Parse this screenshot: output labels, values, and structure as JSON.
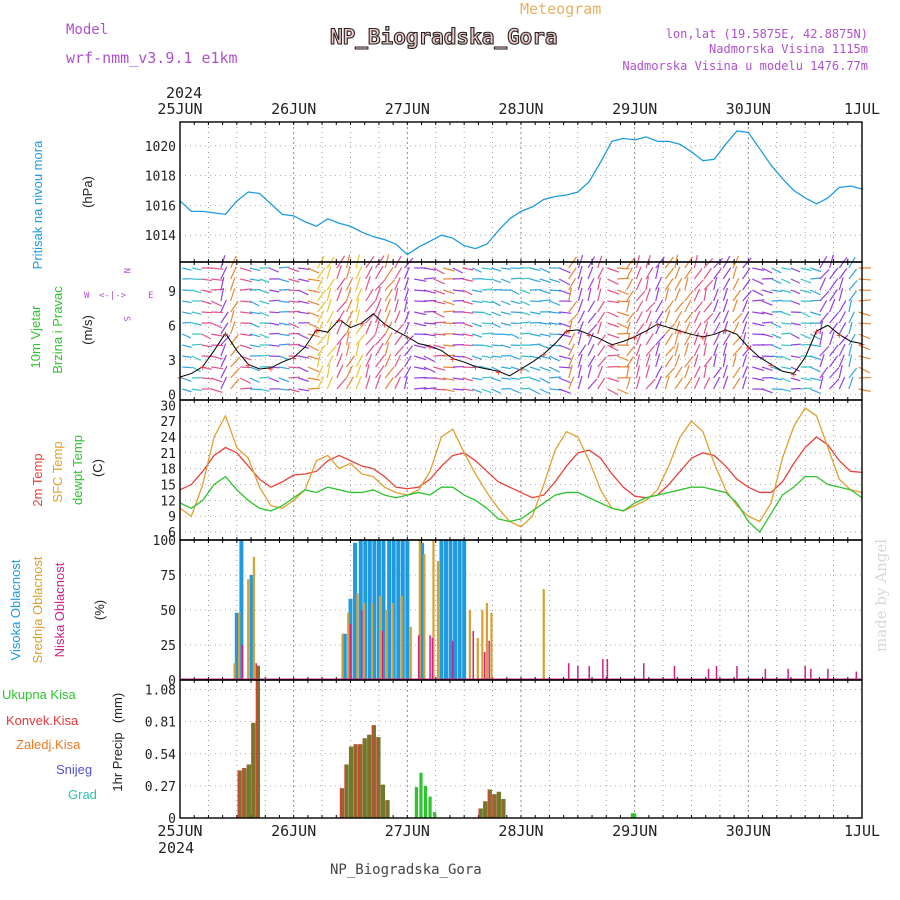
{
  "header": {
    "model_label": "Model",
    "model_name": "wrf-nmm_v3.9.1 e1km",
    "station": "NP_Biogradska_Gora",
    "meteogram": "Meteogram",
    "lonlat": "lon,lat (19.5875E, 42.8875N)",
    "altitude": "Nadmorska Visina 1115m",
    "model_altitude": "Nadmorska Visina u modelu 1476.77m",
    "year_top": "2024",
    "year_bottom": "2024",
    "footer_station": "NP_Biogradska_Gora",
    "watermark": "made by Angel"
  },
  "colors": {
    "pressure": "#1e9be0",
    "temp2m": "#e8413a",
    "sfc": "#e0a030",
    "dewpt": "#2ec42e",
    "high_cloud": "#1e9be0",
    "mid_cloud": "#d9a030",
    "low_cloud": "#d0208a",
    "total_precip": "#2ec42e",
    "conv_precip": "#e83838",
    "strat_precip": "#f07a20",
    "snow": "#5050d8",
    "graupel": "#30c0b0",
    "mix_precip": "#6b7d2a",
    "label_purple": "#b050d0",
    "label_orange": "#e8b060"
  },
  "chart_data": [
    {
      "type": "line",
      "panel": "pressure",
      "x_ticks": [
        "25JUN",
        "26JUN",
        "27JUN",
        "28JUN",
        "29JUN",
        "30JUN",
        "1JUL"
      ],
      "ylabel": "Pritisak na nivou mora",
      "unit": "(hPa)",
      "ylim": [
        1012.2,
        1021.6
      ],
      "yticks": [
        1014,
        1016,
        1018,
        1020
      ],
      "grid": true,
      "series": [
        {
          "x_days": [
            0,
            0.1,
            0.2,
            0.3,
            0.4,
            0.5,
            0.6,
            0.7,
            0.8,
            0.9,
            1,
            1.1,
            1.2,
            1.3,
            1.4,
            1.5,
            1.6,
            1.7,
            1.8,
            1.9,
            2,
            2.1,
            2.2,
            2.3,
            2.4,
            2.5,
            2.6,
            2.7,
            2.8,
            2.9,
            3,
            3.1,
            3.2,
            3.3,
            3.4,
            3.5,
            3.6,
            3.7,
            3.8,
            3.9,
            4,
            4.1,
            4.2,
            4.3,
            4.4,
            4.5,
            4.6,
            4.7,
            4.8,
            4.9,
            5,
            5.1,
            5.2,
            5.3,
            5.4,
            5.5,
            5.6,
            5.7,
            5.8,
            5.9,
            6
          ],
          "values": [
            1016.3,
            1015.6,
            1015.6,
            1015.5,
            1015.4,
            1016.3,
            1016.9,
            1016.8,
            1016.1,
            1015.4,
            1015.3,
            1014.9,
            1014.6,
            1015.1,
            1014.8,
            1014.6,
            1014.2,
            1013.9,
            1013.7,
            1013.4,
            1012.7,
            1013.2,
            1013.6,
            1014,
            1013.8,
            1013.3,
            1013.1,
            1013.4,
            1014.3,
            1015.1,
            1015.6,
            1015.9,
            1016.4,
            1016.6,
            1016.7,
            1016.9,
            1017.6,
            1018.9,
            1020.3,
            1020.5,
            1020.4,
            1020.6,
            1020.3,
            1020.3,
            1020.1,
            1019.6,
            1019,
            1019.1,
            1020.1,
            1021,
            1020.9,
            1019.8,
            1018.7,
            1017.8,
            1017,
            1016.5,
            1016.1,
            1016.5,
            1017.2,
            1017.3,
            1017.1
          ]
        }
      ]
    },
    {
      "type": "line",
      "panel": "wind",
      "ylabel": "10m Vjetar",
      "ylabel2": "Brzina i Pravac",
      "unit": "(m/s)",
      "compass": [
        "W",
        "<-|->",
        "E",
        "N",
        "S"
      ],
      "ylim": [
        -0.5,
        11.5
      ],
      "yticks": [
        0,
        3,
        6,
        9
      ],
      "grid": true,
      "series": [
        {
          "name": "wind_speed",
          "x_days": [
            0,
            0.1,
            0.2,
            0.3,
            0.4,
            0.5,
            0.6,
            0.7,
            0.8,
            0.9,
            1,
            1.1,
            1.2,
            1.3,
            1.4,
            1.5,
            1.6,
            1.7,
            1.8,
            1.9,
            2,
            2.1,
            2.2,
            2.3,
            2.4,
            2.5,
            2.6,
            2.7,
            2.8,
            2.9,
            3,
            3.1,
            3.2,
            3.3,
            3.4,
            3.5,
            3.6,
            3.7,
            3.8,
            3.9,
            4,
            4.1,
            4.2,
            4.3,
            4.4,
            4.5,
            4.6,
            4.7,
            4.8,
            4.9,
            5,
            5.1,
            5.2,
            5.3,
            5.4,
            5.5,
            5.6,
            5.7,
            5.8,
            5.9,
            6
          ],
          "values": [
            1.5,
            1.8,
            2.4,
            3.8,
            5.3,
            3.8,
            2.6,
            2.2,
            2.3,
            2.8,
            3.2,
            4.1,
            5.6,
            5.4,
            6.5,
            5.8,
            6.2,
            7.0,
            6.1,
            5.5,
            5.0,
            4.4,
            4.2,
            3.8,
            3.1,
            2.8,
            2.4,
            2.2,
            2.0,
            1.6,
            2.2,
            2.8,
            3.5,
            4.4,
            5.5,
            5.6,
            5.2,
            4.8,
            4.3,
            4.6,
            5.0,
            5.5,
            6.1,
            5.8,
            5.5,
            5.2,
            5.0,
            5.2,
            5.6,
            5.2,
            4.1,
            3.2,
            2.6,
            2.0,
            1.8,
            3.2,
            5.5,
            6.0,
            5.2,
            4.6,
            4.4
          ]
        }
      ]
    },
    {
      "type": "line",
      "panel": "temperature",
      "ylabel_lines": [
        "2m Temp",
        "SFC Temp",
        "dewpt Temp"
      ],
      "unit": "(C)",
      "ylim": [
        4.5,
        31
      ],
      "yticks": [
        6,
        9,
        12,
        15,
        18,
        21,
        24,
        27,
        30
      ],
      "grid": true,
      "series": [
        {
          "name": "2m Temp",
          "x_days": [
            0,
            0.1,
            0.2,
            0.3,
            0.4,
            0.5,
            0.6,
            0.7,
            0.8,
            0.9,
            1,
            1.1,
            1.2,
            1.3,
            1.4,
            1.5,
            1.6,
            1.7,
            1.8,
            1.9,
            2,
            2.1,
            2.2,
            2.3,
            2.4,
            2.5,
            2.6,
            2.7,
            2.8,
            2.9,
            3,
            3.1,
            3.2,
            3.3,
            3.4,
            3.5,
            3.6,
            3.7,
            3.8,
            3.9,
            4,
            4.1,
            4.2,
            4.3,
            4.4,
            4.5,
            4.6,
            4.7,
            4.8,
            4.9,
            5,
            5.1,
            5.2,
            5.3,
            5.4,
            5.5,
            5.6,
            5.7,
            5.8,
            5.9,
            6
          ],
          "values": [
            14.0,
            15.0,
            17.5,
            20.5,
            22.0,
            21.0,
            18.5,
            16.0,
            14.5,
            15.5,
            16.8,
            17.0,
            17.5,
            19.5,
            20.5,
            19.5,
            18.5,
            18.0,
            16.5,
            14.5,
            14.2,
            14.5,
            16.0,
            18.5,
            20.5,
            21.0,
            19.5,
            17.5,
            15.5,
            14.5,
            13.5,
            12.5,
            13.0,
            15.5,
            18.5,
            21.0,
            21.5,
            20.0,
            17.0,
            14.5,
            12.8,
            12.5,
            13.0,
            15.0,
            17.5,
            20.0,
            21.0,
            20.5,
            18.5,
            16.0,
            14.5,
            13.5,
            13.5,
            15.5,
            19.0,
            22.0,
            24.0,
            22.5,
            19.5,
            17.5,
            17.3
          ]
        },
        {
          "name": "SFC Temp",
          "x_days": [
            0,
            0.1,
            0.2,
            0.3,
            0.4,
            0.5,
            0.6,
            0.7,
            0.8,
            0.9,
            1,
            1.1,
            1.2,
            1.3,
            1.4,
            1.5,
            1.6,
            1.7,
            1.8,
            1.9,
            2,
            2.1,
            2.2,
            2.3,
            2.4,
            2.5,
            2.6,
            2.7,
            2.8,
            2.9,
            3,
            3.1,
            3.2,
            3.3,
            3.4,
            3.5,
            3.6,
            3.7,
            3.8,
            3.9,
            4,
            4.1,
            4.2,
            4.3,
            4.4,
            4.5,
            4.6,
            4.7,
            4.8,
            4.9,
            5,
            5.1,
            5.2,
            5.3,
            5.4,
            5.5,
            5.6,
            5.7,
            5.8,
            5.9,
            6
          ],
          "values": [
            10.5,
            9.0,
            15.0,
            24.0,
            28.0,
            22.0,
            20.0,
            14.5,
            11.0,
            10.5,
            12.0,
            14.0,
            19.5,
            20.5,
            18.0,
            19.0,
            17.0,
            16.5,
            14.5,
            13.5,
            13.0,
            14.0,
            17.5,
            24.0,
            25.5,
            21.0,
            17.0,
            13.5,
            10.5,
            8.0,
            7.0,
            9.0,
            15.0,
            21.5,
            25.0,
            24.0,
            19.5,
            14.0,
            10.5,
            10.0,
            11.0,
            12.0,
            14.0,
            18.5,
            24.0,
            27.0,
            25.0,
            19.0,
            14.0,
            11.0,
            9.0,
            8.0,
            11.5,
            20.0,
            26.0,
            29.5,
            28.0,
            22.0,
            16.0,
            14.0,
            13.5
          ]
        },
        {
          "name": "dewpt Temp",
          "x_days": [
            0,
            0.1,
            0.2,
            0.3,
            0.4,
            0.5,
            0.6,
            0.7,
            0.8,
            0.9,
            1,
            1.1,
            1.2,
            1.3,
            1.4,
            1.5,
            1.6,
            1.7,
            1.8,
            1.9,
            2,
            2.1,
            2.2,
            2.3,
            2.4,
            2.5,
            2.6,
            2.7,
            2.8,
            2.9,
            3,
            3.1,
            3.2,
            3.3,
            3.4,
            3.5,
            3.6,
            3.7,
            3.8,
            3.9,
            4,
            4.1,
            4.2,
            4.3,
            4.4,
            4.5,
            4.6,
            4.7,
            4.8,
            4.9,
            5,
            5.1,
            5.2,
            5.3,
            5.4,
            5.5,
            5.6,
            5.7,
            5.8,
            5.9,
            6
          ],
          "values": [
            11.5,
            10.5,
            12.0,
            15.0,
            16.5,
            14.0,
            12.0,
            10.5,
            10.0,
            11.0,
            12.5,
            14.0,
            13.5,
            14.5,
            14.0,
            13.5,
            13.5,
            14.0,
            13.0,
            12.5,
            13.0,
            13.5,
            13.0,
            14.5,
            14.5,
            13.0,
            12.0,
            10.5,
            8.5,
            8.0,
            8.5,
            10.0,
            11.5,
            13.0,
            13.5,
            13.5,
            12.5,
            11.5,
            10.5,
            10.0,
            11.5,
            12.5,
            13.0,
            13.5,
            14.0,
            14.5,
            14.5,
            14.0,
            13.5,
            11.5,
            8.0,
            6.0,
            9.5,
            13.0,
            14.5,
            16.5,
            16.5,
            15.0,
            14.5,
            14.0,
            12.5
          ]
        }
      ]
    },
    {
      "type": "bar",
      "panel": "cloud",
      "ylabel_lines": [
        "Visoka Oblacnost",
        "Srednja Oblacnost",
        "Niska Oblacnost"
      ],
      "unit": "(%)",
      "ylim": [
        0,
        100
      ],
      "yticks": [
        0,
        25,
        50,
        75,
        100
      ],
      "grid": true,
      "series": [
        {
          "name": "Visoka Oblacnost",
          "x_days": [
            0.5,
            0.54,
            0.63,
            1.45,
            1.5,
            1.54,
            1.59,
            1.63,
            1.67,
            1.71,
            1.75,
            1.79,
            1.84,
            1.88,
            1.92,
            1.96,
            2.0,
            2.13,
            2.3,
            2.34,
            2.38,
            2.42,
            2.46,
            2.5
          ],
          "values": [
            48,
            100,
            75,
            33,
            58,
            98,
            100,
            100,
            100,
            100,
            100,
            100,
            100,
            100,
            100,
            100,
            100,
            98,
            100,
            100,
            100,
            100,
            100,
            100
          ]
        },
        {
          "name": "Srednja Oblacnost",
          "x_days": [
            0.48,
            0.52,
            0.6,
            0.65,
            1.43,
            1.48,
            1.56,
            1.62,
            1.69,
            1.76,
            1.82,
            1.87,
            1.95,
            2.03,
            2.11,
            2.15,
            2.23,
            2.27,
            2.55,
            2.62,
            2.66,
            2.7,
            2.74,
            3.2
          ],
          "values": [
            12,
            48,
            72,
            88,
            33,
            48,
            62,
            55,
            55,
            60,
            50,
            55,
            60,
            38,
            100,
            90,
            100,
            85,
            50,
            30,
            50,
            55,
            48,
            65
          ]
        },
        {
          "name": "Niska Oblacnost",
          "x_days": [
            0.55,
            0.67,
            1.5,
            1.6,
            1.78,
            2.1,
            2.2,
            2.22,
            2.4,
            2.58,
            2.68,
            2.72,
            3.42,
            3.5,
            3.6,
            3.72,
            3.76,
            4.08,
            4.35,
            4.65,
            4.72,
            4.9,
            5.15,
            5.35,
            5.5,
            5.55,
            5.7,
            5.95
          ],
          "values": [
            25,
            12,
            40,
            50,
            35,
            32,
            32,
            30,
            28,
            35,
            20,
            28,
            12,
            10,
            10,
            15,
            15,
            12,
            10,
            8,
            10,
            10,
            8,
            8,
            10,
            8,
            8,
            6
          ]
        }
      ]
    },
    {
      "type": "bar",
      "panel": "precip",
      "legend": [
        "Ukupna Kisa",
        "Konvek.Kisa",
        "Zaledj.Kisa",
        "Snijeg",
        "Grad"
      ],
      "ylabel": "1hr Precip",
      "unit": "(mm)",
      "ylim": [
        0,
        1.16
      ],
      "yticks": [
        0,
        0.27,
        0.54,
        0.81,
        1.08
      ],
      "grid": true,
      "series": [
        {
          "name": "Ukupna Kisa",
          "x_days": [
            2.08,
            2.12,
            2.16,
            2.2,
            2.24,
            3.98,
            4.0
          ],
          "values": [
            0.26,
            0.38,
            0.27,
            0.18,
            0.05,
            0.04,
            0.04
          ]
        },
        {
          "name": "Konvek.Kisa",
          "x_days": [
            0.52,
            0.56,
            0.6,
            0.64,
            0.68,
            1.42,
            1.46,
            1.5,
            1.54,
            1.58,
            1.62,
            1.66,
            1.7,
            1.74,
            1.78,
            1.82,
            2.64,
            2.68,
            2.72,
            2.76,
            2.8,
            2.84
          ],
          "values": [
            0.4,
            0.42,
            0.45,
            0.8,
            1.28,
            0.25,
            0.45,
            0.6,
            0.62,
            0.62,
            0.67,
            0.7,
            0.78,
            0.68,
            0.28,
            0.15,
            0.08,
            0.14,
            0.24,
            0.2,
            0.22,
            0.16
          ]
        },
        {
          "name": "mixed",
          "x_days": [
            0.53,
            0.57,
            0.61,
            0.65,
            0.69,
            1.43,
            1.47,
            1.51,
            1.55,
            1.59,
            1.63,
            1.67,
            1.71,
            1.75,
            1.79,
            1.83,
            2.65,
            2.69,
            2.73,
            2.77,
            2.81,
            2.85
          ],
          "values": [
            0.4,
            0.42,
            0.45,
            0.8,
            1.28,
            0.25,
            0.45,
            0.6,
            0.62,
            0.62,
            0.67,
            0.7,
            0.78,
            0.68,
            0.28,
            0.15,
            0.08,
            0.14,
            0.24,
            0.2,
            0.22,
            0.16
          ]
        }
      ]
    }
  ]
}
